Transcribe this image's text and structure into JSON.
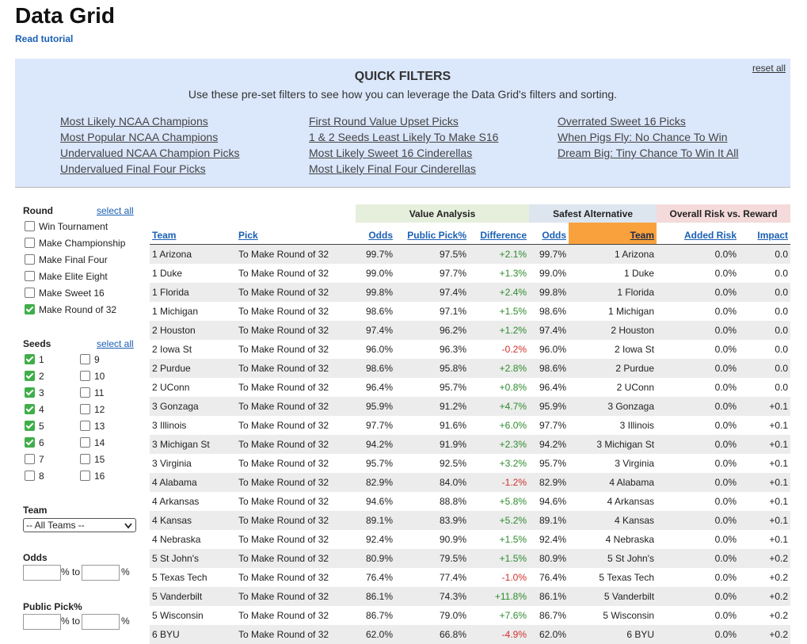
{
  "header": {
    "title": "Data Grid",
    "tutorial": "Read tutorial"
  },
  "quick_filters": {
    "reset": "reset all",
    "title": "QUICK FILTERS",
    "subtitle": "Use these pre-set filters to see how you can leverage the Data Grid's filters and sorting.",
    "columns": [
      [
        "Most Likely NCAA Champions",
        "Most Popular NCAA Champions",
        "Undervalued NCAA Champion Picks",
        "Undervalued Final Four Picks"
      ],
      [
        "First Round Value Upset Picks",
        "1 & 2 Seeds Least Likely To Make S16",
        "Most Likely Sweet 16 Cinderellas",
        "Most Likely Final Four Cinderellas"
      ],
      [
        "Overrated Sweet 16 Picks",
        "When Pigs Fly: No Chance To Win",
        "Dream Big: Tiny Chance To Win It All"
      ]
    ]
  },
  "sidebar": {
    "round": {
      "label": "Round",
      "select_all": "select all",
      "options": [
        {
          "label": "Win Tournament",
          "checked": false
        },
        {
          "label": "Make Championship",
          "checked": false
        },
        {
          "label": "Make Final Four",
          "checked": false
        },
        {
          "label": "Make Elite Eight",
          "checked": false
        },
        {
          "label": "Make Sweet 16",
          "checked": false
        },
        {
          "label": "Make Round of 32",
          "checked": true
        }
      ]
    },
    "seeds": {
      "label": "Seeds",
      "select_all": "select all",
      "options": [
        {
          "label": "1",
          "checked": true
        },
        {
          "label": "2",
          "checked": true
        },
        {
          "label": "3",
          "checked": true
        },
        {
          "label": "4",
          "checked": true
        },
        {
          "label": "5",
          "checked": true
        },
        {
          "label": "6",
          "checked": true
        },
        {
          "label": "7",
          "checked": false
        },
        {
          "label": "8",
          "checked": false
        },
        {
          "label": "9",
          "checked": false
        },
        {
          "label": "10",
          "checked": false
        },
        {
          "label": "11",
          "checked": false
        },
        {
          "label": "12",
          "checked": false
        },
        {
          "label": "13",
          "checked": false
        },
        {
          "label": "14",
          "checked": false
        },
        {
          "label": "15",
          "checked": false
        },
        {
          "label": "16",
          "checked": false
        }
      ]
    },
    "team": {
      "label": "Team",
      "selected": "-- All Teams --"
    },
    "odds": {
      "label": "Odds",
      "to": "% to",
      "unit": "%"
    },
    "public_pick": {
      "label": "Public Pick%",
      "to": "% to",
      "unit": "%"
    }
  },
  "table": {
    "groups": [
      "Value Analysis",
      "Safest Alternative",
      "Overall Risk vs. Reward"
    ],
    "headers": [
      "Team",
      "Pick",
      "Odds",
      "Public Pick%",
      "Difference",
      "Odds",
      "Team",
      "Added Risk",
      "Impact"
    ],
    "rows": [
      [
        "1 Arizona",
        "To Make Round of 32",
        "99.7%",
        "97.5%",
        "+2.1%",
        "99.7%",
        "1 Arizona",
        "0.0%",
        "0.0"
      ],
      [
        "1 Duke",
        "To Make Round of 32",
        "99.0%",
        "97.7%",
        "+1.3%",
        "99.0%",
        "1 Duke",
        "0.0%",
        "0.0"
      ],
      [
        "1 Florida",
        "To Make Round of 32",
        "99.8%",
        "97.4%",
        "+2.4%",
        "99.8%",
        "1 Florida",
        "0.0%",
        "0.0"
      ],
      [
        "1 Michigan",
        "To Make Round of 32",
        "98.6%",
        "97.1%",
        "+1.5%",
        "98.6%",
        "1 Michigan",
        "0.0%",
        "0.0"
      ],
      [
        "2 Houston",
        "To Make Round of 32",
        "97.4%",
        "96.2%",
        "+1.2%",
        "97.4%",
        "2 Houston",
        "0.0%",
        "0.0"
      ],
      [
        "2 Iowa St",
        "To Make Round of 32",
        "96.0%",
        "96.3%",
        "-0.2%",
        "96.0%",
        "2 Iowa St",
        "0.0%",
        "0.0"
      ],
      [
        "2 Purdue",
        "To Make Round of 32",
        "98.6%",
        "95.8%",
        "+2.8%",
        "98.6%",
        "2 Purdue",
        "0.0%",
        "0.0"
      ],
      [
        "2 UConn",
        "To Make Round of 32",
        "96.4%",
        "95.7%",
        "+0.8%",
        "96.4%",
        "2 UConn",
        "0.0%",
        "0.0"
      ],
      [
        "3 Gonzaga",
        "To Make Round of 32",
        "95.9%",
        "91.2%",
        "+4.7%",
        "95.9%",
        "3 Gonzaga",
        "0.0%",
        "+0.1"
      ],
      [
        "3 Illinois",
        "To Make Round of 32",
        "97.7%",
        "91.6%",
        "+6.0%",
        "97.7%",
        "3 Illinois",
        "0.0%",
        "+0.1"
      ],
      [
        "3 Michigan St",
        "To Make Round of 32",
        "94.2%",
        "91.9%",
        "+2.3%",
        "94.2%",
        "3 Michigan St",
        "0.0%",
        "+0.1"
      ],
      [
        "3 Virginia",
        "To Make Round of 32",
        "95.7%",
        "92.5%",
        "+3.2%",
        "95.7%",
        "3 Virginia",
        "0.0%",
        "+0.1"
      ],
      [
        "4 Alabama",
        "To Make Round of 32",
        "82.9%",
        "84.0%",
        "-1.2%",
        "82.9%",
        "4 Alabama",
        "0.0%",
        "+0.1"
      ],
      [
        "4 Arkansas",
        "To Make Round of 32",
        "94.6%",
        "88.8%",
        "+5.8%",
        "94.6%",
        "4 Arkansas",
        "0.0%",
        "+0.1"
      ],
      [
        "4 Kansas",
        "To Make Round of 32",
        "89.1%",
        "83.9%",
        "+5.2%",
        "89.1%",
        "4 Kansas",
        "0.0%",
        "+0.1"
      ],
      [
        "4 Nebraska",
        "To Make Round of 32",
        "92.4%",
        "90.9%",
        "+1.5%",
        "92.4%",
        "4 Nebraska",
        "0.0%",
        "+0.1"
      ],
      [
        "5 St John's",
        "To Make Round of 32",
        "80.9%",
        "79.5%",
        "+1.5%",
        "80.9%",
        "5 St John's",
        "0.0%",
        "+0.2"
      ],
      [
        "5 Texas Tech",
        "To Make Round of 32",
        "76.4%",
        "77.4%",
        "-1.0%",
        "76.4%",
        "5 Texas Tech",
        "0.0%",
        "+0.2"
      ],
      [
        "5 Vanderbilt",
        "To Make Round of 32",
        "86.1%",
        "74.3%",
        "+11.8%",
        "86.1%",
        "5 Vanderbilt",
        "0.0%",
        "+0.2"
      ],
      [
        "5 Wisconsin",
        "To Make Round of 32",
        "86.7%",
        "79.0%",
        "+7.6%",
        "86.7%",
        "5 Wisconsin",
        "0.0%",
        "+0.2"
      ],
      [
        "6 BYU",
        "To Make Round of 32",
        "62.0%",
        "66.8%",
        "-4.9%",
        "62.0%",
        "6 BYU",
        "0.0%",
        "+0.2"
      ]
    ]
  }
}
